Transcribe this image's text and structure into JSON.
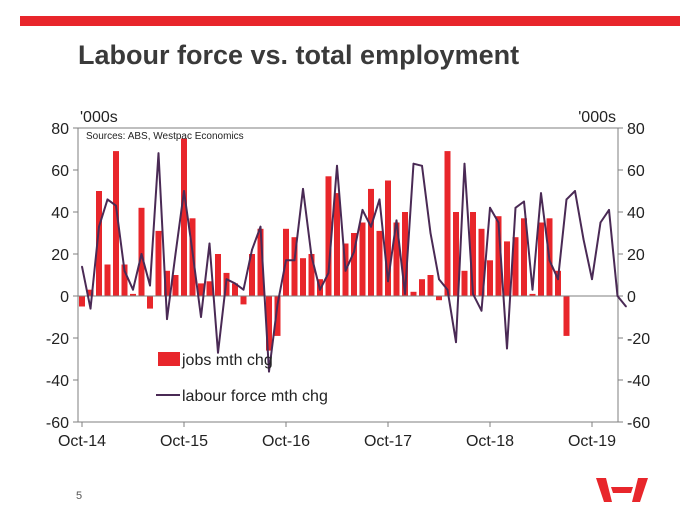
{
  "slide": {
    "title": "Labour force vs. total employment",
    "page_number": "5",
    "logo_name": "westpac-logo",
    "accent_color": "#e8262b"
  },
  "chart_data": {
    "type": "bar+line",
    "title": "Labour force vs. total employment",
    "source": "Sources: ABS, Westpac Economics",
    "y_left_unit": "'000s",
    "y_right_unit": "'000s",
    "ylim": [
      -60,
      80
    ],
    "yticks": [
      80,
      60,
      40,
      20,
      0,
      -20,
      -40,
      -60
    ],
    "xtick_labels": [
      "Oct-14",
      "Oct-15",
      "Oct-16",
      "Oct-17",
      "Oct-18",
      "Oct-19"
    ],
    "xtick_index": [
      0,
      12,
      24,
      36,
      48,
      60
    ],
    "series": [
      {
        "name": "jobs mth chg",
        "type": "bar",
        "color": "#e8262b",
        "values": [
          -5,
          3,
          50,
          15,
          69,
          15,
          1,
          42,
          -6,
          31,
          12,
          10,
          75,
          37,
          6,
          7,
          20,
          11,
          6,
          -4,
          20,
          32,
          -26,
          -19,
          32,
          28,
          18,
          20,
          8,
          57,
          49,
          25,
          30,
          35,
          51,
          31,
          55,
          35,
          40,
          2,
          8,
          10,
          -2,
          69,
          40,
          12,
          40,
          32,
          17,
          38,
          26,
          28,
          37,
          1,
          35,
          37,
          12,
          -19
        ],
        "start_index": 0
      },
      {
        "name": "labour force mth chg",
        "type": "line",
        "color": "#4a2a55",
        "values": [
          14,
          -6,
          33,
          46,
          43,
          12,
          3,
          20,
          5,
          68,
          -11,
          20,
          50,
          21,
          -10,
          25,
          -27,
          8,
          6,
          3,
          22,
          33,
          -36,
          -4,
          17,
          17,
          51,
          19,
          3,
          11,
          62,
          12,
          21,
          41,
          33,
          46,
          7,
          36,
          1,
          63,
          62,
          30,
          8,
          3,
          -22,
          63,
          1,
          -7,
          42,
          35,
          -25,
          42,
          45,
          3,
          49,
          17,
          8,
          46,
          50,
          27,
          8,
          35,
          41,
          0,
          -5
        ],
        "start_index": 0
      }
    ],
    "legend": [
      {
        "label": "jobs mth chg",
        "kind": "bar"
      },
      {
        "label": "labour force mth chg",
        "kind": "line"
      }
    ],
    "legend_placement": "lower-left"
  }
}
